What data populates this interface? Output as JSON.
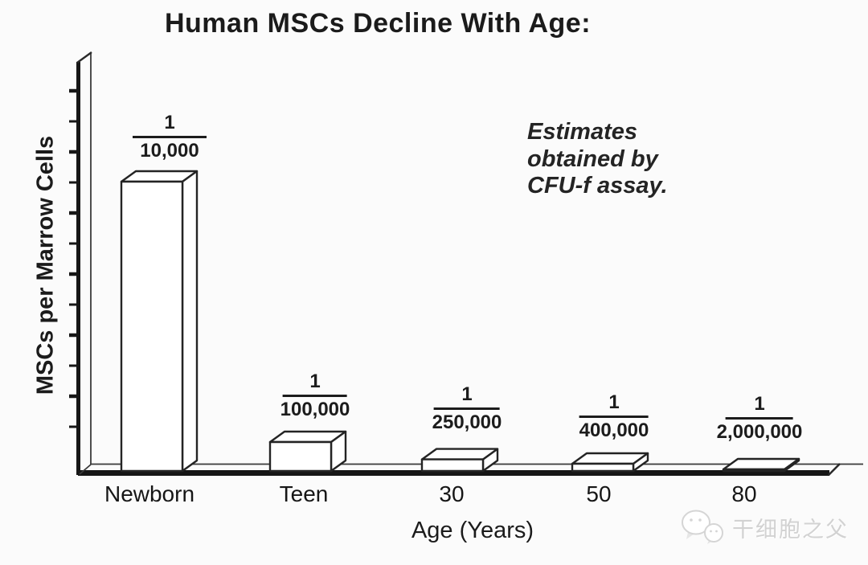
{
  "page": {
    "background_color": "#fbfbfb",
    "line_color": "#222222",
    "bar_fill_color": "#ffffff"
  },
  "chart_data": {
    "type": "bar",
    "style": "3d-white-boxes-hand-drawn",
    "title": "Human MSCs Decline With Age:",
    "xlabel": "Age (Years)",
    "ylabel": "MSCs per Marrow Cells",
    "annotation": "Estimates\nobtained by\nCFU-f assay.",
    "categories": [
      "Newborn",
      "Teen",
      "30",
      "50",
      "80"
    ],
    "bars": [
      {
        "category": "Newborn",
        "numerator": "1",
        "denominator": "10,000",
        "value_fraction": "1/10,000",
        "value": 0.0001
      },
      {
        "category": "Teen",
        "numerator": "1",
        "denominator": "100,000",
        "value_fraction": "1/100,000",
        "value": 1e-05
      },
      {
        "category": "30",
        "numerator": "1",
        "denominator": "250,000",
        "value_fraction": "1/250,000",
        "value": 4e-06
      },
      {
        "category": "50",
        "numerator": "1",
        "denominator": "400,000",
        "value_fraction": "1/400,000",
        "value": 2.5e-06
      },
      {
        "category": "80",
        "numerator": "1",
        "denominator": "2,000,000",
        "value_fraction": "1/2,000,000",
        "value": 5e-07
      }
    ],
    "y_axis": {
      "tick_labels": [],
      "tick_count": 12,
      "numeric_labels_shown": false
    },
    "legend": null,
    "grid": false
  },
  "watermark": {
    "text": "干细胞之父",
    "icon": "wechat-chat-bubbles-icon",
    "color": "#d2d2d2"
  }
}
